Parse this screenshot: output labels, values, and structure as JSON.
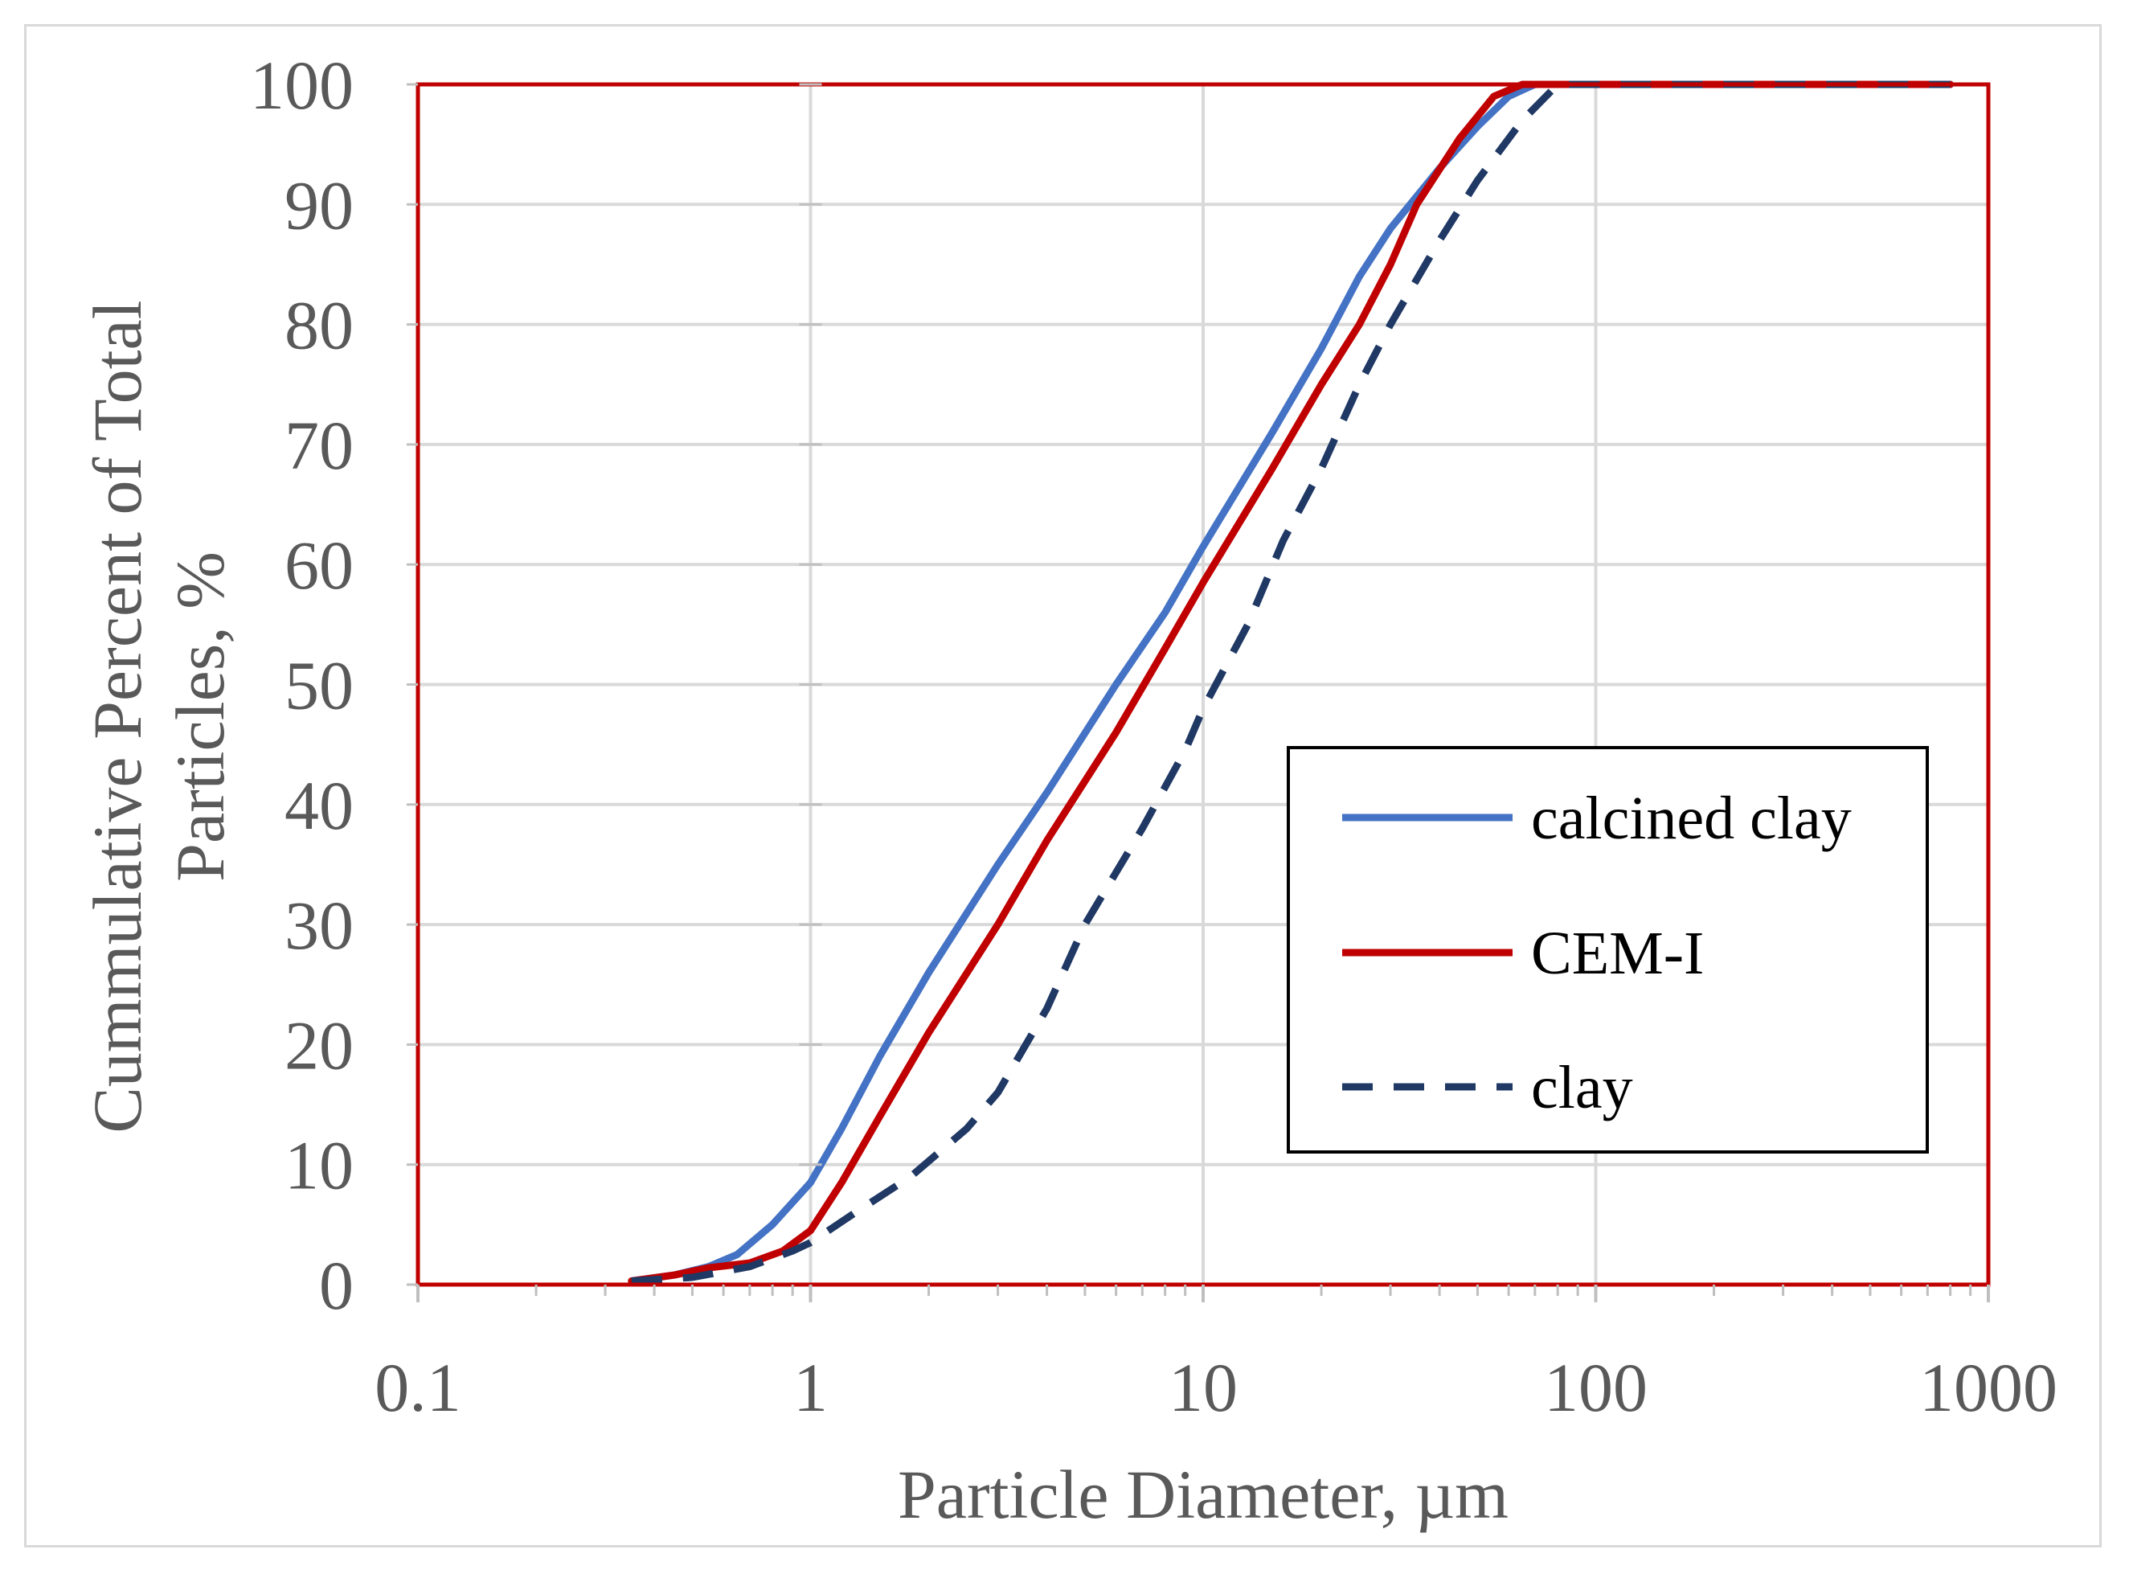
{
  "chart_data": {
    "type": "line",
    "xscale": "log",
    "xlim": [
      0.1,
      1000
    ],
    "ylim": [
      0,
      100
    ],
    "xticks": [
      0.1,
      1,
      10,
      100,
      1000
    ],
    "xtick_labels": [
      "0.1",
      "1",
      "10",
      "100",
      "1000"
    ],
    "yticks": [
      0,
      10,
      20,
      30,
      40,
      50,
      60,
      70,
      80,
      90,
      100
    ],
    "ytick_labels": [
      "0",
      "10",
      "20",
      "30",
      "40",
      "50",
      "60",
      "70",
      "80",
      "90",
      "100"
    ],
    "xlabel": "Particle Diameter, µm",
    "ylabel_line1": "Cummulative Percent of Total",
    "ylabel_line2": "Particles, %",
    "grid": true,
    "legend_position": "lower-right",
    "series": [
      {
        "name": "calcined clay",
        "color": "#4472c4",
        "dash": "solid",
        "points": [
          [
            0.35,
            0.3
          ],
          [
            0.45,
            0.8
          ],
          [
            0.55,
            1.5
          ],
          [
            0.65,
            2.5
          ],
          [
            0.8,
            5
          ],
          [
            1,
            8.5
          ],
          [
            1.2,
            13
          ],
          [
            1.5,
            19
          ],
          [
            2,
            26
          ],
          [
            3,
            35
          ],
          [
            4,
            41
          ],
          [
            6,
            50
          ],
          [
            8,
            56
          ],
          [
            10,
            61.5
          ],
          [
            15,
            71
          ],
          [
            20,
            78
          ],
          [
            25,
            84
          ],
          [
            30,
            88
          ],
          [
            40,
            93
          ],
          [
            50,
            96.5
          ],
          [
            60,
            99
          ],
          [
            70,
            100
          ],
          [
            800,
            100
          ]
        ]
      },
      {
        "name": "CEM-I",
        "color": "#c00000",
        "dash": "solid",
        "points": [
          [
            0.35,
            0.3
          ],
          [
            0.45,
            0.8
          ],
          [
            0.55,
            1.4
          ],
          [
            0.7,
            1.8
          ],
          [
            0.85,
            2.8
          ],
          [
            1,
            4.5
          ],
          [
            1.2,
            8.5
          ],
          [
            1.5,
            14
          ],
          [
            2,
            21
          ],
          [
            3,
            30
          ],
          [
            4,
            37
          ],
          [
            6,
            46
          ],
          [
            8,
            53
          ],
          [
            10,
            58.5
          ],
          [
            15,
            68
          ],
          [
            20,
            75
          ],
          [
            25,
            80
          ],
          [
            30,
            85
          ],
          [
            35,
            90
          ],
          [
            45,
            95.5
          ],
          [
            55,
            99
          ],
          [
            65,
            100
          ],
          [
            800,
            100
          ]
        ]
      },
      {
        "name": "clay",
        "color": "#1f3864",
        "dash": "dashed",
        "points": [
          [
            0.35,
            0.3
          ],
          [
            0.5,
            0.6
          ],
          [
            0.7,
            1.5
          ],
          [
            0.9,
            2.8
          ],
          [
            1,
            3.5
          ],
          [
            1.3,
            6
          ],
          [
            1.8,
            9
          ],
          [
            2.5,
            13
          ],
          [
            3,
            16
          ],
          [
            4,
            23
          ],
          [
            5,
            30
          ],
          [
            7,
            38
          ],
          [
            9,
            44.5
          ],
          [
            10,
            48
          ],
          [
            13,
            55
          ],
          [
            16,
            62
          ],
          [
            20,
            68
          ],
          [
            25,
            75
          ],
          [
            30,
            80
          ],
          [
            40,
            87
          ],
          [
            50,
            92
          ],
          [
            65,
            97
          ],
          [
            80,
            100
          ],
          [
            800,
            100
          ]
        ]
      }
    ]
  }
}
